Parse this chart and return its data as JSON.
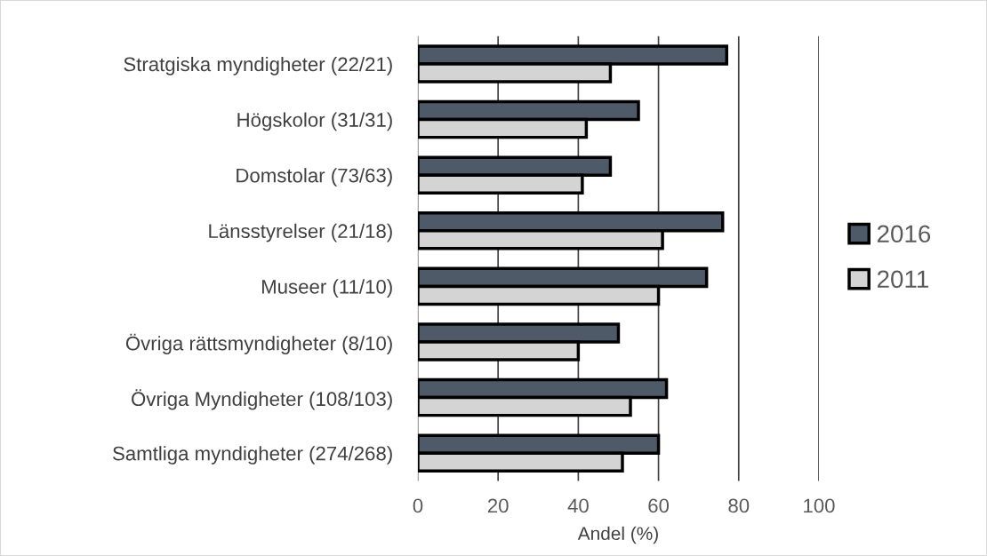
{
  "chart_data": {
    "type": "bar",
    "orientation": "horizontal",
    "xlabel": "Andel (%)",
    "categories": [
      "Stratgiska myndigheter (22/21)",
      "Högskolor (31/31)",
      "Domstolar (73/63)",
      "Länsstyrelser (21/18)",
      "Museer (11/10)",
      "Övriga rättsmyndigheter (8/10)",
      "Övriga Myndigheter (108/103)",
      "Samtliga myndigheter (274/268)"
    ],
    "series": [
      {
        "name": "2016",
        "color": "#4f5a68",
        "values": [
          77,
          55,
          48,
          76,
          72,
          50,
          62,
          60
        ]
      },
      {
        "name": "2011",
        "color": "#d4d4d4",
        "values": [
          48,
          42,
          41,
          61,
          60,
          40,
          53,
          51
        ]
      }
    ],
    "xlim": [
      0,
      100
    ],
    "xticks": [
      0,
      20,
      40,
      60,
      80,
      100
    ],
    "grid": "x",
    "legend": "right"
  }
}
